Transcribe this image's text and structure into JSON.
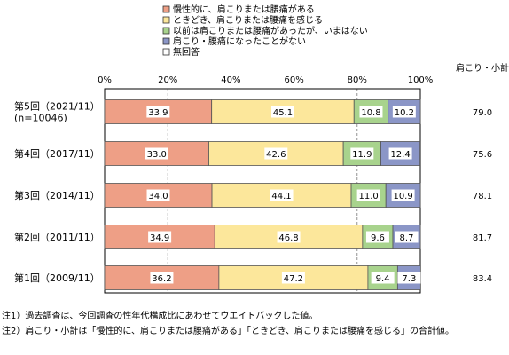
{
  "chart_data": {
    "type": "bar",
    "orientation": "horizontal",
    "stacked": true,
    "xlim": [
      0,
      100
    ],
    "x_ticks": [
      "0%",
      "20%",
      "40%",
      "60%",
      "80%",
      "100%"
    ],
    "legend_position": "top",
    "categories": [
      [
        "第5回（2021/11）",
        "(n=10046)"
      ],
      [
        "第4回（2017/11）"
      ],
      [
        "第3回（2014/11）"
      ],
      [
        "第2回（2011/11）"
      ],
      [
        "第1回（2009/11）"
      ]
    ],
    "series": [
      {
        "name": "慢性的に、肩こりまたは腰痛がある",
        "color": "#EE9F86",
        "values": [
          33.9,
          33.0,
          34.0,
          34.9,
          36.2
        ]
      },
      {
        "name": "ときどき、肩こりまたは腰痛を感じる",
        "color": "#FCE79B",
        "values": [
          45.1,
          42.6,
          44.1,
          46.8,
          47.2
        ]
      },
      {
        "name": "以前は肩こりまたは腰痛があったが、いまはない",
        "color": "#A8D38D",
        "values": [
          10.8,
          11.9,
          11.0,
          9.6,
          9.4
        ]
      },
      {
        "name": "肩こり・腰痛になったことがない",
        "color": "#8B96C7",
        "values": [
          10.2,
          12.4,
          10.9,
          8.7,
          7.3
        ]
      },
      {
        "name": "無回答",
        "color": "#FFFFFF",
        "values": [
          0.0,
          0.0,
          0.0,
          0.0,
          0.0
        ]
      }
    ],
    "value_labels": [
      [
        "33.9",
        "45.1",
        "10.8",
        "10.2"
      ],
      [
        "33.0",
        "42.6",
        "11.9",
        "12.4"
      ],
      [
        "34.0",
        "44.1",
        "11.0",
        "10.9"
      ],
      [
        "34.9",
        "46.8",
        "9.6",
        "8.7"
      ],
      [
        "36.2",
        "47.2",
        "9.4",
        "7.3"
      ]
    ],
    "subtotal_header": "肩こり・小計",
    "subtotals": [
      "79.0",
      "75.6",
      "78.1",
      "81.7",
      "83.4"
    ]
  },
  "notes": [
    "注1）過去調査は、今回調査の性年代構成比にあわせてウエイトバックした値。",
    "注2）肩こり・小計は「慢性的に、肩こりまたは腰痛がある」「ときどき、肩こりまたは腰痛を感じる」の合計値。"
  ]
}
